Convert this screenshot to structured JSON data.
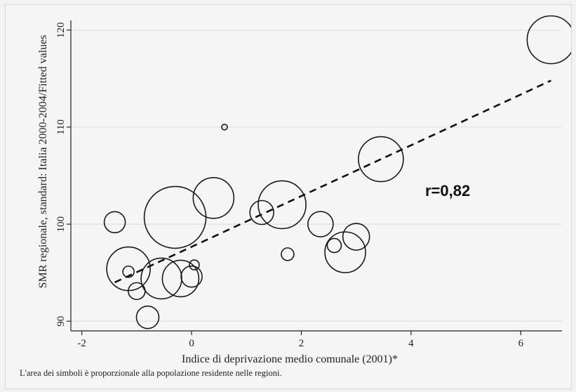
{
  "chart_data": {
    "type": "scatter",
    "xlabel": "Indice di deprivazione medio comunale (2001)*",
    "ylabel": "SMR regionale, standard: Italia 2000-2004/Fitted values",
    "xlim": [
      -2.2,
      6.75
    ],
    "ylim": [
      89.0,
      121.0
    ],
    "x_ticks": [
      -2,
      0,
      2,
      4,
      6
    ],
    "y_ticks": [
      90,
      100,
      110,
      120
    ],
    "grid": "horizontal",
    "annotation": "r=0,82",
    "footnote": "L'area dei simboli è proporzionale alla popolazione residente nelle regioni.",
    "points": [
      {
        "x": 6.55,
        "y": 119.0,
        "size": 34
      },
      {
        "x": 3.45,
        "y": 106.7,
        "size": 32
      },
      {
        "x": 0.6,
        "y": 110.0,
        "size": 4
      },
      {
        "x": 0.4,
        "y": 102.7,
        "size": 29
      },
      {
        "x": 1.65,
        "y": 102.0,
        "size": 34
      },
      {
        "x": -0.3,
        "y": 100.7,
        "size": 44
      },
      {
        "x": 1.28,
        "y": 101.2,
        "size": 17
      },
      {
        "x": -1.4,
        "y": 100.2,
        "size": 15
      },
      {
        "x": 2.35,
        "y": 100.0,
        "size": 18
      },
      {
        "x": 3.0,
        "y": 98.7,
        "size": 19
      },
      {
        "x": 2.6,
        "y": 97.8,
        "size": 10
      },
      {
        "x": 2.8,
        "y": 97.1,
        "size": 29
      },
      {
        "x": 1.75,
        "y": 96.9,
        "size": 9
      },
      {
        "x": -1.15,
        "y": 95.4,
        "size": 31
      },
      {
        "x": -1.15,
        "y": 95.1,
        "size": 8
      },
      {
        "x": 0.05,
        "y": 95.8,
        "size": 7
      },
      {
        "x": -0.55,
        "y": 94.4,
        "size": 29
      },
      {
        "x": -0.2,
        "y": 94.4,
        "size": 26
      },
      {
        "x": 0.0,
        "y": 94.6,
        "size": 15
      },
      {
        "x": -1.0,
        "y": 93.1,
        "size": 12
      },
      {
        "x": -0.8,
        "y": 90.4,
        "size": 16
      }
    ],
    "fitted_line": {
      "x": [
        -1.4,
        6.55
      ],
      "y": [
        94.0,
        114.8
      ]
    }
  }
}
